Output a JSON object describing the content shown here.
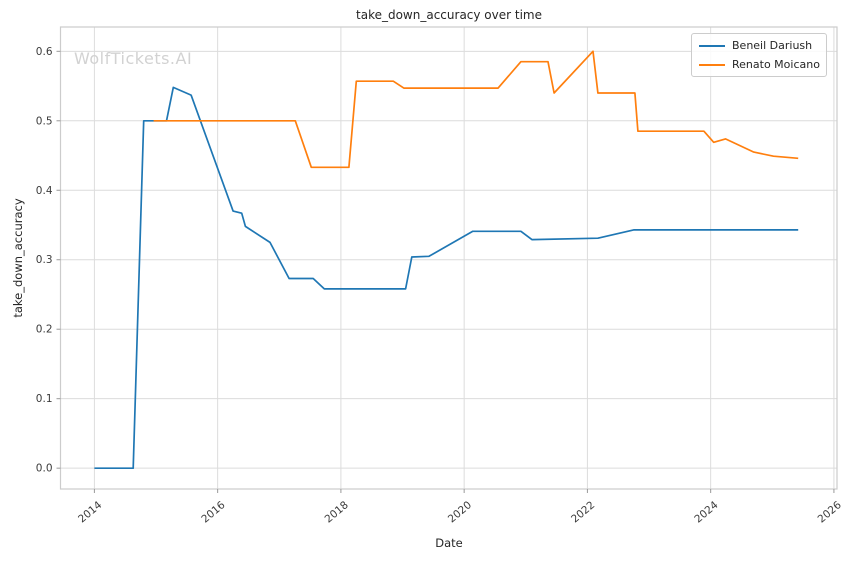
{
  "figure": {
    "title": "take_down_accuracy over time",
    "watermark": "WolfTickets.AI",
    "xlabel": "Date",
    "ylabel": "take_down_accuracy"
  },
  "legend": {
    "items": [
      {
        "label": "Beneil Dariush",
        "color": "#1f77b4"
      },
      {
        "label": "Renato Moicano",
        "color": "#ff7f0e"
      }
    ]
  },
  "chart_data": {
    "type": "line",
    "title": "take_down_accuracy over time",
    "xlabel": "Date",
    "ylabel": "take_down_accuracy",
    "xlim": [
      2013.45,
      2026.05
    ],
    "ylim": [
      -0.03,
      0.635
    ],
    "x_ticks": [
      2014,
      2016,
      2018,
      2020,
      2022,
      2024,
      2026
    ],
    "x_tick_labels": [
      "2014",
      "2016",
      "2018",
      "2020",
      "2022",
      "2024",
      "2026"
    ],
    "y_ticks": [
      0.0,
      0.1,
      0.2,
      0.3,
      0.4,
      0.5,
      0.6
    ],
    "y_tick_labels": [
      "0.0",
      "0.1",
      "0.2",
      "0.3",
      "0.4",
      "0.5",
      "0.6"
    ],
    "grid": true,
    "grid_color": "#dcdcdc",
    "spine_color": "#cccccc",
    "tick_color": "#999999",
    "tick_label_color": "#3b3b3b",
    "legend_position": "upper right",
    "series": [
      {
        "name": "Beneil Dariush",
        "color": "#1f77b4",
        "points": [
          [
            2014.0,
            0.0
          ],
          [
            2014.63,
            0.0
          ],
          [
            2014.8,
            0.5
          ],
          [
            2015.17,
            0.5
          ],
          [
            2015.28,
            0.548
          ],
          [
            2015.57,
            0.537
          ],
          [
            2016.25,
            0.37
          ],
          [
            2016.39,
            0.367
          ],
          [
            2016.45,
            0.348
          ],
          [
            2016.85,
            0.325
          ],
          [
            2017.16,
            0.273
          ],
          [
            2017.55,
            0.273
          ],
          [
            2017.73,
            0.258
          ],
          [
            2019.05,
            0.258
          ],
          [
            2019.15,
            0.304
          ],
          [
            2019.43,
            0.305
          ],
          [
            2020.14,
            0.341
          ],
          [
            2020.92,
            0.341
          ],
          [
            2021.1,
            0.329
          ],
          [
            2022.17,
            0.331
          ],
          [
            2022.75,
            0.343
          ],
          [
            2025.42,
            0.343
          ]
        ]
      },
      {
        "name": "Renato Moicano",
        "color": "#ff7f0e",
        "points": [
          [
            2014.96,
            0.5
          ],
          [
            2017.26,
            0.5
          ],
          [
            2017.52,
            0.433
          ],
          [
            2018.13,
            0.433
          ],
          [
            2018.25,
            0.557
          ],
          [
            2018.85,
            0.557
          ],
          [
            2019.02,
            0.547
          ],
          [
            2020.55,
            0.547
          ],
          [
            2020.92,
            0.585
          ],
          [
            2021.36,
            0.585
          ],
          [
            2021.46,
            0.54
          ],
          [
            2022.09,
            0.6
          ],
          [
            2022.17,
            0.54
          ],
          [
            2022.77,
            0.54
          ],
          [
            2022.82,
            0.485
          ],
          [
            2023.89,
            0.485
          ],
          [
            2024.05,
            0.469
          ],
          [
            2024.24,
            0.474
          ],
          [
            2024.7,
            0.455
          ],
          [
            2025.02,
            0.449
          ],
          [
            2025.42,
            0.446
          ]
        ]
      }
    ]
  }
}
